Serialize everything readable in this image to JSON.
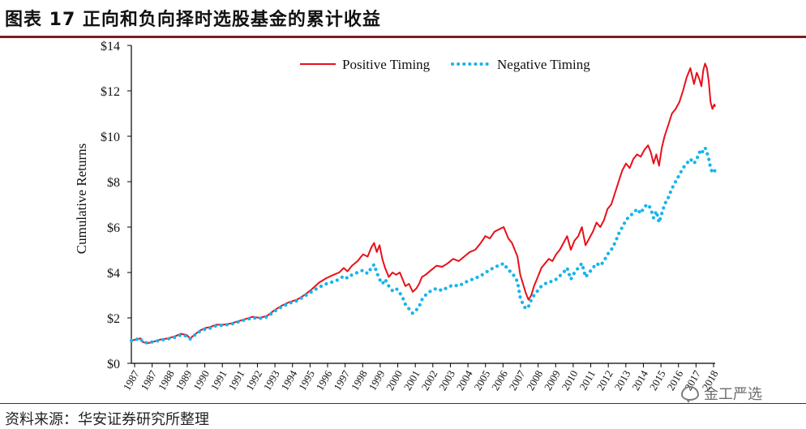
{
  "figure_title": "图表 17 正向和负向择时选股基金的累计收益",
  "source": "资料来源：华安证券研究所整理",
  "watermark": "金工严选",
  "colors": {
    "positive": "#e8101a",
    "negative": "#18b4ec",
    "axis": "#000000",
    "title_rule": "#7a1f1f"
  },
  "chart_data": {
    "type": "line",
    "title": "",
    "xlabel": "",
    "ylabel": "Cumulative Returns",
    "ylim": [
      0,
      14
    ],
    "y_ticks": [
      0,
      2,
      4,
      6,
      8,
      10,
      12,
      14
    ],
    "y_tick_labels": [
      "$0",
      "$2",
      "$4",
      "$6",
      "$8",
      "$10",
      "$12",
      "$14"
    ],
    "xlim": [
      1987.0,
      2018.75
    ],
    "x_tick_labels": [
      "1987",
      "1987",
      "1988",
      "1989",
      "1990",
      "1991",
      "1991",
      "1992",
      "1993",
      "1994",
      "1995",
      "1996",
      "1997",
      "1998",
      "1999",
      "2000",
      "2001",
      "2002",
      "2003",
      "2004",
      "2005",
      "2006",
      "2007",
      "2008",
      "2009",
      "2010",
      "2011",
      "2012",
      "2013",
      "2014",
      "2015",
      "2016",
      "2017",
      "2018"
    ],
    "legend": {
      "placement": "top-center",
      "entries": [
        "Positive Timing",
        "Negative Timing"
      ]
    },
    "series": [
      {
        "name": "Positive Timing",
        "style": "solid",
        "x": [
          1987.0,
          1987.25,
          1987.5,
          1987.6,
          1987.85,
          1988.2,
          1988.6,
          1989.0,
          1989.4,
          1989.7,
          1990.0,
          1990.2,
          1990.5,
          1990.75,
          1991.0,
          1991.3,
          1991.6,
          1992.0,
          1992.4,
          1992.8,
          1993.2,
          1993.6,
          1994.0,
          1994.4,
          1994.8,
          1995.2,
          1995.6,
          1996.0,
          1996.4,
          1996.8,
          1997.2,
          1997.6,
          1998.0,
          1998.3,
          1998.55,
          1998.75,
          1999.0,
          1999.3,
          1999.6,
          1999.85,
          2000.05,
          2000.2,
          2000.35,
          2000.5,
          2000.65,
          2000.8,
          2001.0,
          2001.2,
          2001.4,
          2001.6,
          2001.75,
          2001.9,
          2002.1,
          2002.3,
          2002.5,
          2002.65,
          2002.8,
          2003.0,
          2003.3,
          2003.6,
          2003.9,
          2004.2,
          2004.5,
          2004.8,
          2005.1,
          2005.4,
          2005.7,
          2006.0,
          2006.25,
          2006.5,
          2006.75,
          2007.0,
          2007.25,
          2007.5,
          2007.7,
          2007.85,
          2008.0,
          2008.15,
          2008.3,
          2008.45,
          2008.6,
          2008.75,
          2008.9,
          2009.1,
          2009.3,
          2009.5,
          2009.7,
          2009.9,
          2010.1,
          2010.3,
          2010.5,
          2010.7,
          2010.9,
          2011.1,
          2011.3,
          2011.5,
          2011.7,
          2011.9,
          2012.1,
          2012.3,
          2012.5,
          2012.7,
          2012.9,
          2013.1,
          2013.3,
          2013.5,
          2013.7,
          2013.9,
          2014.1,
          2014.3,
          2014.5,
          2014.7,
          2014.9,
          2015.1,
          2015.25,
          2015.4,
          2015.55,
          2015.7,
          2015.85,
          2016.0,
          2016.2,
          2016.4,
          2016.6,
          2016.8,
          2017.0,
          2017.2,
          2017.4,
          2017.6,
          2017.75,
          2017.9,
          2018.0,
          2018.1,
          2018.2,
          2018.3,
          2018.4,
          2018.5,
          2018.6,
          2018.7,
          2018.75
        ],
        "y": [
          1.0,
          1.05,
          1.1,
          0.95,
          0.88,
          0.95,
          1.05,
          1.1,
          1.2,
          1.3,
          1.25,
          1.1,
          1.3,
          1.45,
          1.55,
          1.6,
          1.7,
          1.7,
          1.75,
          1.85,
          1.95,
          2.05,
          2.0,
          2.1,
          2.35,
          2.55,
          2.7,
          2.8,
          3.0,
          3.25,
          3.55,
          3.75,
          3.9,
          4.0,
          4.2,
          4.05,
          4.3,
          4.5,
          4.8,
          4.7,
          5.1,
          5.3,
          4.9,
          5.2,
          4.6,
          4.2,
          3.8,
          4.0,
          3.9,
          4.0,
          3.7,
          3.4,
          3.5,
          3.15,
          3.3,
          3.5,
          3.8,
          3.9,
          4.1,
          4.3,
          4.25,
          4.4,
          4.6,
          4.5,
          4.7,
          4.9,
          5.0,
          5.3,
          5.6,
          5.5,
          5.8,
          5.9,
          6.0,
          5.5,
          5.3,
          5.0,
          4.7,
          3.9,
          3.5,
          3.1,
          2.8,
          3.0,
          3.4,
          3.8,
          4.2,
          4.4,
          4.6,
          4.5,
          4.8,
          5.0,
          5.3,
          5.6,
          5.0,
          5.4,
          5.6,
          6.0,
          5.2,
          5.5,
          5.8,
          6.2,
          6.0,
          6.3,
          6.8,
          7.0,
          7.5,
          8.0,
          8.5,
          8.8,
          8.6,
          9.0,
          9.2,
          9.1,
          9.4,
          9.6,
          9.3,
          8.8,
          9.2,
          8.7,
          9.5,
          10.0,
          10.5,
          11.0,
          11.2,
          11.5,
          12.0,
          12.6,
          13.0,
          12.3,
          12.8,
          12.5,
          12.2,
          12.9,
          13.2,
          13.0,
          12.4,
          11.5,
          11.2,
          11.4,
          11.3
        ],
        "color": "#e8101a"
      },
      {
        "name": "Negative Timing",
        "style": "dotted",
        "x": [
          1987.0,
          1987.25,
          1987.5,
          1987.6,
          1987.85,
          1988.2,
          1988.6,
          1989.0,
          1989.4,
          1989.7,
          1990.0,
          1990.2,
          1990.5,
          1990.75,
          1991.0,
          1991.3,
          1991.6,
          1992.0,
          1992.4,
          1992.8,
          1993.2,
          1993.6,
          1994.0,
          1994.4,
          1994.8,
          1995.2,
          1995.6,
          1996.0,
          1996.4,
          1996.8,
          1997.2,
          1997.6,
          1998.0,
          1998.3,
          1998.55,
          1998.75,
          1999.0,
          1999.3,
          1999.6,
          1999.85,
          2000.05,
          2000.2,
          2000.35,
          2000.5,
          2000.65,
          2000.8,
          2001.0,
          2001.2,
          2001.4,
          2001.6,
          2001.75,
          2001.9,
          2002.1,
          2002.3,
          2002.5,
          2002.65,
          2002.8,
          2003.0,
          2003.3,
          2003.6,
          2003.9,
          2004.2,
          2004.5,
          2004.8,
          2005.1,
          2005.4,
          2005.7,
          2006.0,
          2006.25,
          2006.5,
          2006.75,
          2007.0,
          2007.25,
          2007.5,
          2007.7,
          2007.85,
          2008.0,
          2008.15,
          2008.3,
          2008.45,
          2008.6,
          2008.75,
          2008.9,
          2009.1,
          2009.3,
          2009.5,
          2009.7,
          2009.9,
          2010.1,
          2010.3,
          2010.5,
          2010.7,
          2010.9,
          2011.1,
          2011.3,
          2011.5,
          2011.7,
          2011.9,
          2012.1,
          2012.3,
          2012.5,
          2012.7,
          2012.9,
          2013.1,
          2013.3,
          2013.5,
          2013.7,
          2013.9,
          2014.1,
          2014.3,
          2014.5,
          2014.7,
          2014.9,
          2015.1,
          2015.25,
          2015.4,
          2015.55,
          2015.7,
          2015.85,
          2016.0,
          2016.2,
          2016.4,
          2016.6,
          2016.8,
          2017.0,
          2017.2,
          2017.4,
          2017.6,
          2017.75,
          2017.9,
          2018.0,
          2018.1,
          2018.2,
          2018.3,
          2018.4,
          2018.5,
          2018.6,
          2018.7,
          2018.75
        ],
        "y": [
          1.0,
          1.05,
          1.1,
          0.95,
          0.9,
          0.95,
          1.02,
          1.08,
          1.15,
          1.25,
          1.2,
          1.08,
          1.28,
          1.42,
          1.5,
          1.55,
          1.65,
          1.68,
          1.72,
          1.82,
          1.92,
          2.0,
          1.98,
          2.05,
          2.3,
          2.5,
          2.65,
          2.75,
          2.95,
          3.15,
          3.35,
          3.5,
          3.6,
          3.7,
          3.85,
          3.75,
          3.9,
          4.0,
          4.1,
          3.95,
          4.2,
          4.35,
          4.0,
          3.7,
          3.5,
          3.7,
          3.4,
          3.2,
          3.3,
          3.1,
          2.9,
          2.6,
          2.4,
          2.2,
          2.35,
          2.5,
          2.8,
          3.0,
          3.2,
          3.3,
          3.2,
          3.35,
          3.45,
          3.4,
          3.55,
          3.65,
          3.75,
          3.85,
          4.0,
          4.1,
          4.25,
          4.3,
          4.4,
          4.1,
          4.0,
          3.8,
          3.6,
          2.9,
          2.6,
          2.4,
          2.5,
          2.8,
          3.0,
          3.2,
          3.4,
          3.5,
          3.6,
          3.6,
          3.7,
          3.85,
          4.0,
          4.2,
          3.7,
          4.0,
          4.2,
          4.4,
          3.8,
          4.0,
          4.2,
          4.4,
          4.3,
          4.5,
          4.8,
          5.0,
          5.3,
          5.7,
          6.0,
          6.3,
          6.5,
          6.6,
          6.8,
          6.6,
          6.9,
          7.0,
          6.8,
          6.4,
          6.7,
          6.2,
          6.6,
          7.0,
          7.3,
          7.7,
          8.0,
          8.3,
          8.6,
          8.8,
          9.0,
          8.8,
          9.0,
          9.3,
          9.2,
          9.4,
          9.5,
          9.3,
          9.0,
          8.6,
          8.4,
          8.5,
          8.45
        ],
        "color": "#18b4ec"
      }
    ]
  }
}
